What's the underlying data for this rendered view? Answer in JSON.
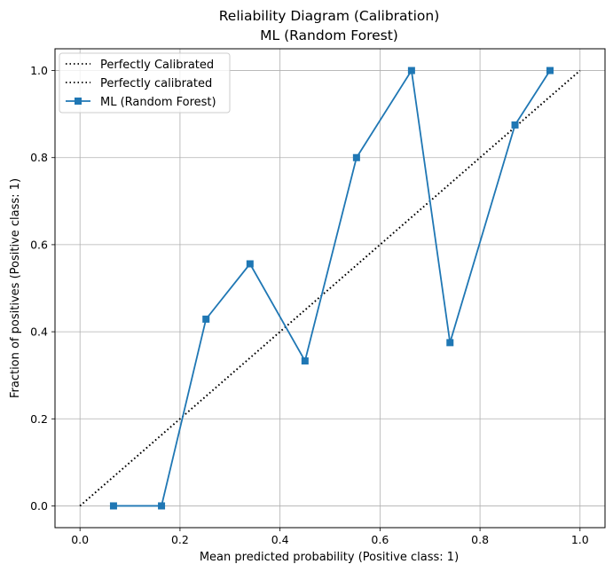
{
  "chart_data": {
    "type": "line",
    "title": "Reliability Diagram (Calibration)",
    "subtitle": "ML (Random Forest)",
    "xlabel": "Mean predicted probability (Positive class: 1)",
    "ylabel": "Fraction of positives (Positive class: 1)",
    "xlim": [
      -0.05,
      1.05
    ],
    "ylim": [
      -0.05,
      1.05
    ],
    "xticks": [
      "0.0",
      "0.2",
      "0.4",
      "0.6",
      "0.8",
      "1.0"
    ],
    "yticks": [
      "0.0",
      "0.2",
      "0.4",
      "0.6",
      "0.8",
      "1.0"
    ],
    "grid": true,
    "legend_position": "top-left",
    "reference_lines": [
      {
        "name": "Perfectly Calibrated",
        "x": [
          0,
          1
        ],
        "y": [
          0,
          1
        ],
        "style": "dotted",
        "color": "#000000"
      },
      {
        "name": "Perfectly calibrated",
        "x": [
          0,
          1
        ],
        "y": [
          0,
          1
        ],
        "style": "dotted",
        "color": "#000000"
      }
    ],
    "series": [
      {
        "name": "ML (Random Forest)",
        "color": "#1f77b4",
        "marker": "square",
        "x": [
          0.067,
          0.163,
          0.252,
          0.34,
          0.45,
          0.553,
          0.663,
          0.74,
          0.87,
          0.94
        ],
        "y": [
          0.0,
          0.0,
          0.429,
          0.556,
          0.333,
          0.8,
          1.0,
          0.375,
          0.875,
          1.0
        ]
      }
    ]
  }
}
